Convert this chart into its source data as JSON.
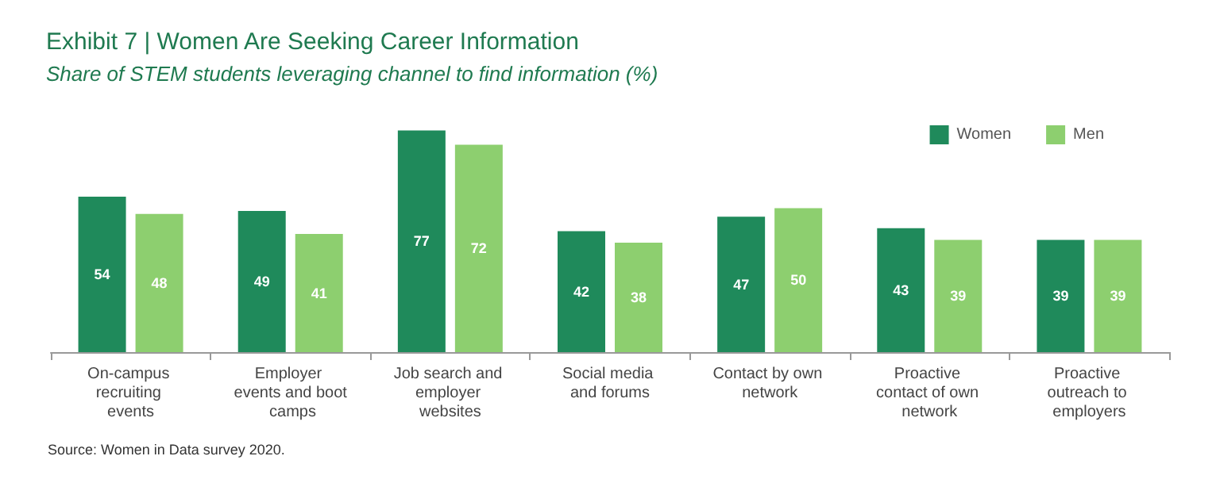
{
  "chart_data": {
    "type": "bar",
    "title": "Exhibit 7 | Women Are Seeking Career Information",
    "subtitle": "Share of STEM students leveraging channel to find information (%)",
    "categories": [
      "On-campus recruiting events",
      "Employer events and boot camps",
      "Job search and employer websites",
      "Social media and forums",
      "Contact by own network",
      "Proactive contact of own network",
      "Proactive outreach to employers"
    ],
    "series": [
      {
        "name": "Women",
        "color": "#1f8a5b",
        "values": [
          54,
          49,
          77,
          42,
          47,
          43,
          39
        ]
      },
      {
        "name": "Men",
        "color": "#8dcf6f",
        "values": [
          48,
          41,
          72,
          38,
          50,
          39,
          39
        ]
      }
    ],
    "data_labels": true,
    "legend": "top right",
    "tick_labels": "x",
    "annotations": [
      "Source: Women in Data survey 2020."
    ]
  }
}
